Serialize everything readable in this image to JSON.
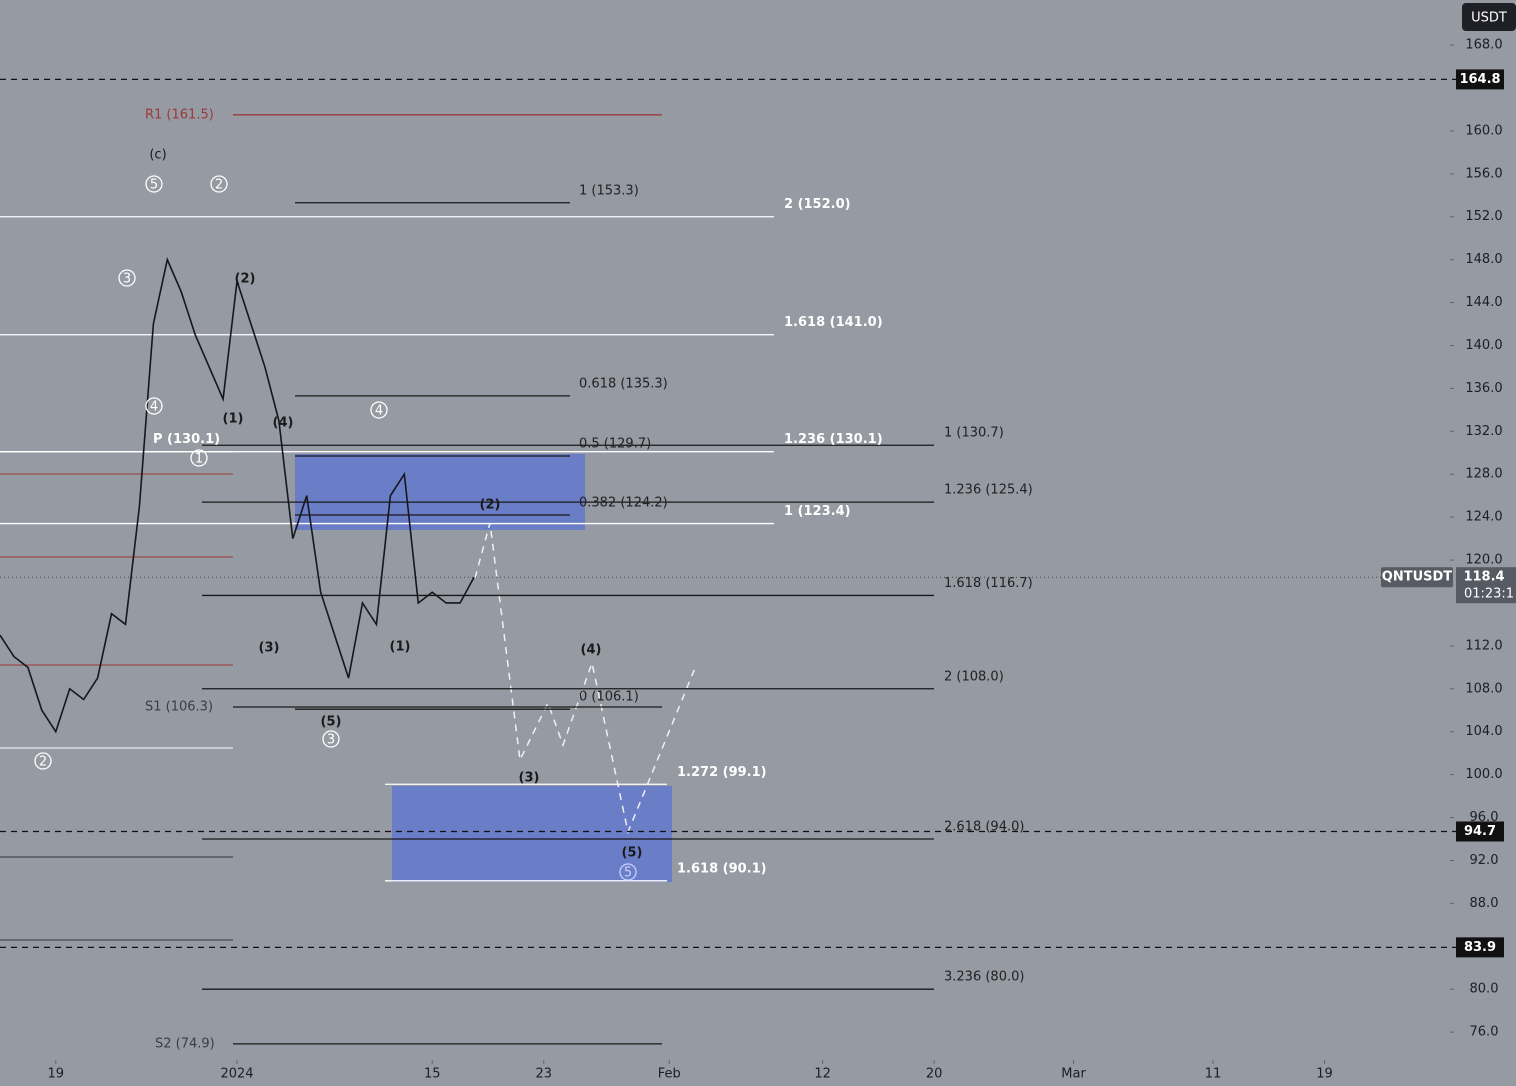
{
  "chart_data": {
    "type": "line",
    "currency": "USDT",
    "x": [
      "2023-12-15",
      "2023-12-16",
      "2023-12-17",
      "2023-12-18",
      "2023-12-19",
      "2023-12-20",
      "2023-12-21",
      "2023-12-22",
      "2023-12-23",
      "2023-12-24",
      "2023-12-25",
      "2023-12-26",
      "2023-12-27",
      "2023-12-28",
      "2023-12-29",
      "2023-12-30",
      "2023-12-31",
      "2024-01-01",
      "2024-01-02",
      "2024-01-03",
      "2024-01-04",
      "2024-01-05",
      "2024-01-06",
      "2024-01-07",
      "2024-01-08",
      "2024-01-09",
      "2024-01-10",
      "2024-01-11",
      "2024-01-12",
      "2024-01-13",
      "2024-01-14",
      "2024-01-15",
      "2024-01-16",
      "2024-01-17",
      "2024-01-18"
    ],
    "series": [
      {
        "name": "QNTUSDT",
        "color": "#15171c",
        "values": [
          113,
          111,
          110,
          106,
          104,
          108,
          107,
          109,
          115,
          114,
          125,
          142,
          148,
          145,
          141,
          138,
          135,
          146,
          142,
          138,
          133,
          122,
          126,
          117,
          113,
          109,
          116,
          114,
          126,
          128,
          116,
          117,
          116,
          116,
          118.4
        ]
      }
    ],
    "xlim": [
      "2023-12-15",
      "2024-03-28"
    ],
    "xticks": [
      {
        "value": "2023-12-19",
        "label": "19"
      },
      {
        "value": "2024-01-01",
        "label": "2024"
      },
      {
        "value": "2024-01-15",
        "label": "15"
      },
      {
        "value": "2024-01-23",
        "label": "23"
      },
      {
        "value": "2024-02-01",
        "label": "Feb"
      },
      {
        "value": "2024-02-12",
        "label": "12"
      },
      {
        "value": "2024-02-20",
        "label": "20"
      },
      {
        "value": "2024-03-01",
        "label": "Mar"
      },
      {
        "value": "2024-03-11",
        "label": "11"
      },
      {
        "value": "2024-03-19",
        "label": "19"
      }
    ],
    "ylim": [
      73.4,
      172.2
    ],
    "yticks": [
      {
        "value": 76,
        "label": "76.0"
      },
      {
        "value": 80,
        "label": "80.0"
      },
      {
        "value": 88,
        "label": "88.0"
      },
      {
        "value": 92,
        "label": "92.0"
      },
      {
        "value": 96,
        "label": "96.0"
      },
      {
        "value": 100,
        "label": "100.0"
      },
      {
        "value": 104,
        "label": "104.0"
      },
      {
        "value": 108,
        "label": "108.0"
      },
      {
        "value": 112,
        "label": "112.0"
      },
      {
        "value": 120,
        "label": "120.0"
      },
      {
        "value": 124,
        "label": "124.0"
      },
      {
        "value": 128,
        "label": "128.0"
      },
      {
        "value": 132,
        "label": "132.0"
      },
      {
        "value": 136,
        "label": "136.0"
      },
      {
        "value": 140,
        "label": "140.0"
      },
      {
        "value": 144,
        "label": "144.0"
      },
      {
        "value": 148,
        "label": "148.0"
      },
      {
        "value": 152,
        "label": "152.0"
      },
      {
        "value": 156,
        "label": "156.0"
      },
      {
        "value": 160,
        "label": "160.0"
      },
      {
        "value": 168,
        "label": "168.0"
      }
    ],
    "last_price": 118.4,
    "countdown": "01:23:1",
    "price_markers": [
      164.8,
      94.7,
      83.9
    ],
    "levels": [
      {
        "label": "R1 (161.5)",
        "value": 161.5,
        "color": "#9b3a3a"
      },
      {
        "label": "1 (153.3)",
        "value": 153.3,
        "color": "#1a1a1a"
      },
      {
        "label": "2 (152.0)",
        "value": 152.0,
        "color": "#ffffff"
      },
      {
        "label": "1.618 (141.0)",
        "value": 141.0,
        "color": "#ffffff"
      },
      {
        "label": "0.618 (135.3)",
        "value": 135.3,
        "color": "#1a1a1a"
      },
      {
        "label": "1 (130.7)",
        "value": 130.7,
        "color": "#1a1a1a"
      },
      {
        "label": "1.236 (130.1)",
        "value": 130.1,
        "color": "#ffffff"
      },
      {
        "label": "P (130.1)",
        "value": 130.1,
        "color": "#ffffff"
      },
      {
        "label": "0.5 (129.7)",
        "value": 129.7,
        "color": "#1a1a1a"
      },
      {
        "label": "1.236 (125.4)",
        "value": 125.4,
        "color": "#1a1a1a"
      },
      {
        "label": "0.382 (124.2)",
        "value": 124.2,
        "color": "#1a1a1a"
      },
      {
        "label": "1 (123.4)",
        "value": 123.4,
        "color": "#ffffff"
      },
      {
        "label": "1.618 (116.7)",
        "value": 116.7,
        "color": "#1a1a1a"
      },
      {
        "label": "2 (108.0)",
        "value": 108.0,
        "color": "#1a1a1a"
      },
      {
        "label": "S1 (106.3)",
        "value": 106.3,
        "color": "#1a1a1a"
      },
      {
        "label": "0 (106.1)",
        "value": 106.1,
        "color": "#1a1a1a"
      },
      {
        "label": "1.272 (99.1)",
        "value": 99.1,
        "color": "#ffffff"
      },
      {
        "label": "2.618 (94.0)",
        "value": 94.0,
        "color": "#1a1a1a"
      },
      {
        "label": "1.618 (90.1)",
        "value": 90.1,
        "color": "#ffffff"
      },
      {
        "label": "3.236 (80.0)",
        "value": 80.0,
        "color": "#1a1a1a"
      },
      {
        "label": "S2 (74.9)",
        "value": 74.9,
        "color": "#1a1a1a"
      }
    ],
    "wave_labels": [
      {
        "text": "(c)",
        "circled": false
      },
      {
        "text": "5",
        "circled": true
      },
      {
        "text": "2",
        "circled": true
      },
      {
        "text": "3",
        "circled": true
      },
      {
        "text": "4",
        "circled": true
      },
      {
        "text": "1",
        "circled": true
      },
      {
        "text": "4",
        "circled": true
      },
      {
        "text": "3",
        "circled": true
      },
      {
        "text": "2",
        "circled": true
      },
      {
        "text": "5",
        "circled": true
      },
      {
        "text": "(2)",
        "circled": false
      },
      {
        "text": "(1)",
        "circled": false
      },
      {
        "text": "(4)",
        "circled": false
      },
      {
        "text": "(3)",
        "circled": false
      },
      {
        "text": "(5)",
        "circled": false
      },
      {
        "text": "(1)",
        "circled": false
      },
      {
        "text": "(2)",
        "circled": false
      },
      {
        "text": "(4)",
        "circled": false
      },
      {
        "text": "(3)",
        "circled": false
      },
      {
        "text": "(5)",
        "circled": false
      }
    ]
  }
}
